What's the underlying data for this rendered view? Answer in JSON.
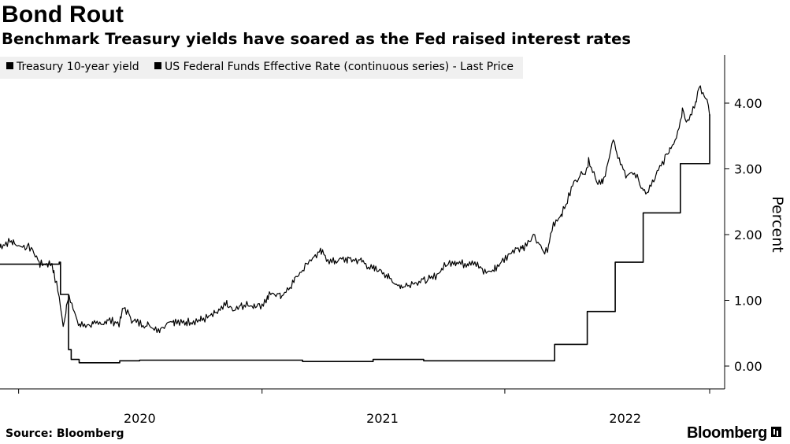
{
  "header": {
    "title": "Bond Rout",
    "subtitle": "Benchmark Treasury yields have soared as the Fed raised interest rates"
  },
  "footer": {
    "source": "Source: Bloomberg",
    "brand": "Bloomberg"
  },
  "chart_data": {
    "type": "line",
    "ylabel": "Percent",
    "ylim": [
      -0.35,
      4.7
    ],
    "yticks": [
      0,
      1,
      2,
      3,
      4
    ],
    "ytick_labels": [
      "0.00",
      "1.00",
      "2.00",
      "3.00",
      "4.00"
    ],
    "xlim": [
      "2019-12-04",
      "2022-11-05"
    ],
    "xticks": [
      "2020-07-01",
      "2021-07-01",
      "2022-07-01"
    ],
    "xtick_labels": [
      "2020",
      "2021",
      "2022"
    ],
    "grid": false,
    "legend_position": "top-left",
    "colors": {
      "line": "#000000",
      "legend_bg": "#f0f0f0"
    },
    "series": [
      {
        "name": "Treasury 10-year yield",
        "style": "volatile",
        "x": [
          "2019-12-04",
          "2019-12-20",
          "2020-01-03",
          "2020-01-20",
          "2020-02-03",
          "2020-02-20",
          "2020-03-02",
          "2020-03-09",
          "2020-03-12",
          "2020-03-18",
          "2020-03-25",
          "2020-04-01",
          "2020-04-15",
          "2020-05-01",
          "2020-05-15",
          "2020-06-01",
          "2020-06-08",
          "2020-06-20",
          "2020-07-01",
          "2020-07-15",
          "2020-08-01",
          "2020-08-15",
          "2020-09-01",
          "2020-09-15",
          "2020-10-01",
          "2020-10-15",
          "2020-11-01",
          "2020-11-09",
          "2020-11-20",
          "2020-12-01",
          "2020-12-15",
          "2021-01-01",
          "2021-01-15",
          "2021-02-01",
          "2021-02-15",
          "2021-03-01",
          "2021-03-15",
          "2021-03-31",
          "2021-04-15",
          "2021-05-01",
          "2021-05-15",
          "2021-06-01",
          "2021-06-15",
          "2021-07-01",
          "2021-07-15",
          "2021-08-01",
          "2021-08-15",
          "2021-09-01",
          "2021-09-15",
          "2021-10-01",
          "2021-10-15",
          "2021-11-01",
          "2021-11-15",
          "2021-12-01",
          "2021-12-15",
          "2022-01-01",
          "2022-01-15",
          "2022-02-01",
          "2022-02-15",
          "2022-03-01",
          "2022-03-08",
          "2022-03-15",
          "2022-04-01",
          "2022-04-15",
          "2022-05-01",
          "2022-05-09",
          "2022-05-20",
          "2022-06-01",
          "2022-06-14",
          "2022-06-20",
          "2022-07-01",
          "2022-07-15",
          "2022-08-01",
          "2022-08-15",
          "2022-09-01",
          "2022-09-15",
          "2022-09-27",
          "2022-10-01",
          "2022-10-15",
          "2022-10-21",
          "2022-11-01",
          "2022-11-05"
        ],
        "values": [
          1.82,
          1.9,
          1.83,
          1.8,
          1.55,
          1.56,
          1.1,
          0.54,
          0.85,
          1.1,
          0.8,
          0.62,
          0.63,
          0.63,
          0.7,
          0.65,
          0.9,
          0.7,
          0.65,
          0.62,
          0.55,
          0.7,
          0.65,
          0.68,
          0.7,
          0.75,
          0.85,
          0.95,
          0.83,
          0.92,
          0.92,
          0.93,
          1.1,
          1.08,
          1.25,
          1.45,
          1.62,
          1.74,
          1.58,
          1.62,
          1.62,
          1.6,
          1.48,
          1.45,
          1.3,
          1.2,
          1.27,
          1.3,
          1.33,
          1.5,
          1.6,
          1.55,
          1.6,
          1.43,
          1.45,
          1.63,
          1.78,
          1.82,
          1.98,
          1.72,
          1.8,
          2.15,
          2.38,
          2.8,
          2.95,
          3.13,
          2.8,
          2.85,
          3.48,
          3.2,
          2.9,
          2.95,
          2.6,
          2.85,
          3.2,
          3.45,
          3.95,
          3.7,
          4.0,
          4.23,
          4.05,
          3.85
        ]
      },
      {
        "name": "US Federal Funds Effective Rate (continuous series) - Last Price",
        "style": "step",
        "x": [
          "2019-12-04",
          "2020-03-02",
          "2020-03-04",
          "2020-03-16",
          "2020-03-20",
          "2020-04-01",
          "2020-05-01",
          "2020-06-01",
          "2020-07-01",
          "2020-09-01",
          "2020-12-01",
          "2021-01-01",
          "2021-03-03",
          "2021-06-16",
          "2021-06-17",
          "2021-09-01",
          "2021-12-01",
          "2022-03-16",
          "2022-03-17",
          "2022-05-04",
          "2022-05-05",
          "2022-06-15",
          "2022-06-16",
          "2022-07-27",
          "2022-07-28",
          "2022-09-21",
          "2022-09-22",
          "2022-11-02",
          "2022-11-05"
        ],
        "values": [
          1.55,
          1.58,
          1.09,
          0.25,
          0.1,
          0.05,
          0.05,
          0.08,
          0.09,
          0.09,
          0.09,
          0.09,
          0.07,
          0.07,
          0.1,
          0.08,
          0.08,
          0.08,
          0.33,
          0.33,
          0.83,
          0.83,
          1.58,
          1.58,
          2.33,
          2.33,
          3.08,
          3.08,
          3.83
        ]
      }
    ]
  }
}
